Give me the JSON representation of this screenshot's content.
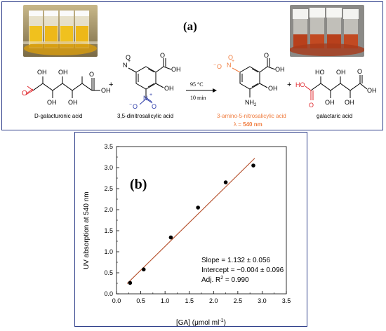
{
  "panel_a": {
    "label": "(a)",
    "compounds": {
      "galacturonic": "D-galacturonic acid",
      "dns": "3,5-dinitrosalicylic acid",
      "product": "3-amino-5-nitrosalicylic acid",
      "galactaric": "galactaric acid"
    },
    "lambda": {
      "prefix": "λ = ",
      "value": "540 nm"
    },
    "condition_temp": "95 °C",
    "condition_time": "10 min",
    "plus": "+",
    "atoms": {
      "OH": "OH",
      "O": "O",
      "N": "N",
      "NH2": "NH",
      "sub2": "2",
      "HO": "HO",
      "plus_charge": "+",
      "minus_charge": "−"
    },
    "colors": {
      "border": "#2f3f8a",
      "red": "#e0282e",
      "blue": "#2b3aa8",
      "orange": "#f07c3e"
    }
  },
  "panel_b": {
    "label": "(b)",
    "annotation": {
      "slope": "Slope = 1.132 ± 0.056",
      "intercept": "Intercept = −0.004 ± 0.096",
      "adjr2_prefix": "Adj. R",
      "adjr2_sup": "2",
      "adjr2_suffix": " = 0.990"
    }
  },
  "chart_data": {
    "type": "scatter",
    "x": [
      0.28,
      0.56,
      1.12,
      1.68,
      2.25,
      2.82
    ],
    "y": [
      0.26,
      0.58,
      1.34,
      2.05,
      2.65,
      3.05
    ],
    "fit": {
      "slope": 1.132,
      "intercept": -0.004,
      "color": "#b5502c"
    },
    "xlabel": "[GA] (μmol ml",
    "xlabel_sup": "-1",
    "xlabel_end": ")",
    "ylabel": "UV absorption at 540 nm",
    "xlim": [
      0,
      3.5
    ],
    "ylim": [
      0,
      3.5
    ],
    "xticks": [
      "0.0",
      "0.5",
      "1.0",
      "1.5",
      "2.0",
      "2.5",
      "3.0",
      "3.5"
    ],
    "yticks": [
      "0.0",
      "0.5",
      "1.0",
      "1.5",
      "2.0",
      "2.5",
      "3.0",
      "3.5"
    ],
    "grid": false
  }
}
